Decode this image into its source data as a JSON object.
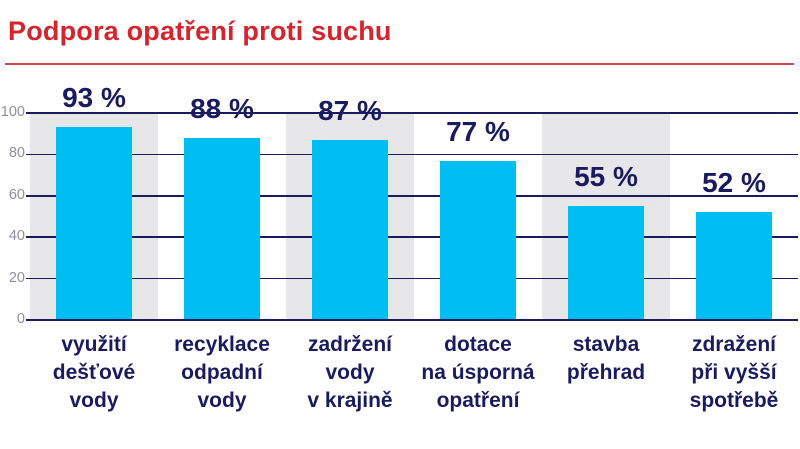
{
  "page": {
    "title": "Podpora opatření proti suchu",
    "accent_color": "#d4252d",
    "background_color": "#ffffff"
  },
  "chart_data": {
    "type": "bar",
    "title": "Podpora opatření proti suchu",
    "categories": [
      [
        "využití",
        "dešťové",
        "vody"
      ],
      [
        "recyklace",
        "odpadní",
        "vody"
      ],
      [
        "zadržení",
        "vody",
        "v krajině"
      ],
      [
        "dotace",
        "na úsporná",
        "opatření"
      ],
      [
        "stavba",
        "přehrad"
      ],
      [
        "zdražení",
        "při vyšší",
        "spotřebě"
      ]
    ],
    "values": [
      93,
      88,
      87,
      77,
      55,
      52
    ],
    "value_labels": [
      "93 %",
      "88 %",
      "87 %",
      "77 %",
      "55 %",
      "52 %"
    ],
    "xlabel": "",
    "ylabel": "",
    "ylim": [
      0,
      100
    ],
    "yticks": [
      0,
      20,
      40,
      60,
      80,
      100
    ],
    "grid": true,
    "legend": false,
    "bar_color": "#00bdf2",
    "label_color": "#1a1b5e",
    "gridline_color": "#1a1b5e",
    "band_color": "#e7e7ea",
    "tick_label_color": "#8f8f9e"
  }
}
